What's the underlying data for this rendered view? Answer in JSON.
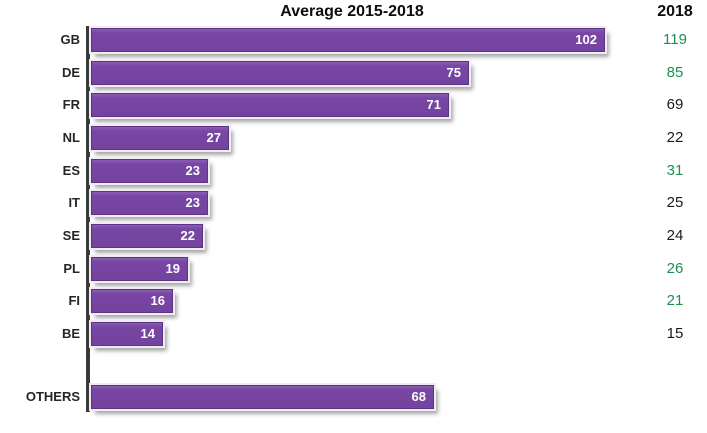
{
  "title": "Average 2015-2018",
  "column_header": "2018",
  "colors": {
    "bar_fill": "#7846a3",
    "bar_border": "#5c3387",
    "bar_rim": "#efedf0",
    "axis": "#3a3a3a",
    "value_green": "#1b9150",
    "value_black": "#1a1a1a",
    "bar_label_text": "#ffffff"
  },
  "chart_data": {
    "type": "bar",
    "orientation": "horizontal",
    "title": "Average 2015-2018",
    "categories": [
      "GB",
      "DE",
      "FR",
      "NL",
      "ES",
      "IT",
      "SE",
      "PL",
      "FI",
      "BE",
      "OTHERS"
    ],
    "series": [
      {
        "name": "Average 2015-2018",
        "values": [
          102,
          75,
          71,
          27,
          23,
          23,
          22,
          19,
          16,
          14,
          68
        ]
      },
      {
        "name": "2018",
        "values": [
          119,
          85,
          69,
          22,
          31,
          25,
          24,
          26,
          21,
          15,
          null
        ]
      }
    ],
    "value_labels_shown": "inside bar end, white bold",
    "secondary_column_colors": [
      "green",
      "green",
      "black",
      "black",
      "green",
      "black",
      "black",
      "green",
      "green",
      "black",
      "none"
    ],
    "xlim": [
      0,
      110
    ],
    "grid": false,
    "legend": false,
    "notes": "OTHERS row separated by a gap below BE; no 2018 value for OTHERS"
  },
  "rows": [
    {
      "label": "GB",
      "avg": 102,
      "y2018": "119",
      "trend": "green"
    },
    {
      "label": "DE",
      "avg": 75,
      "y2018": "85",
      "trend": "green"
    },
    {
      "label": "FR",
      "avg": 71,
      "y2018": "69",
      "trend": "black"
    },
    {
      "label": "NL",
      "avg": 27,
      "y2018": "22",
      "trend": "black"
    },
    {
      "label": "ES",
      "avg": 23,
      "y2018": "31",
      "trend": "green"
    },
    {
      "label": "IT",
      "avg": 23,
      "y2018": "25",
      "trend": "black"
    },
    {
      "label": "SE",
      "avg": 22,
      "y2018": "24",
      "trend": "black"
    },
    {
      "label": "PL",
      "avg": 19,
      "y2018": "26",
      "trend": "green"
    },
    {
      "label": "FI",
      "avg": 16,
      "y2018": "21",
      "trend": "green"
    },
    {
      "label": "BE",
      "avg": 14,
      "y2018": "15",
      "trend": "black"
    },
    {
      "label": "OTHERS",
      "avg": 68,
      "y2018": "",
      "trend": "none"
    }
  ]
}
